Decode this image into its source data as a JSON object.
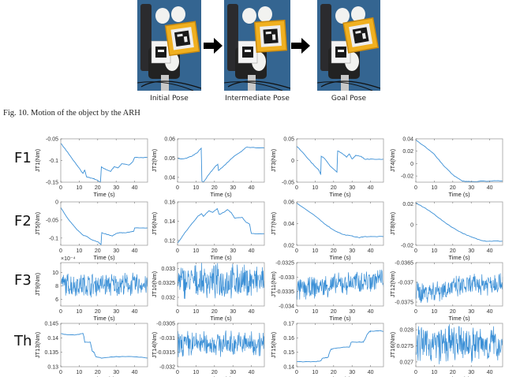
{
  "figure": {
    "caption": "Fig. 10.  Motion of the object by the ARH",
    "poses": [
      {
        "label": "Initial Pose",
        "rotation": -8,
        "cube_x": 38,
        "cube_y": 30
      },
      {
        "label": "Intermediate Pose",
        "rotation": -4,
        "cube_x": 40,
        "cube_y": 27
      },
      {
        "label": "Goal Pose",
        "rotation": -10,
        "cube_x": 36,
        "cube_y": 26
      }
    ],
    "row_labels": [
      "F1",
      "F2",
      "F3",
      "Th"
    ],
    "colors": {
      "line": "#3a8fd6",
      "axis": "#a0a0a0",
      "photo_bg": "#2f5f8c",
      "cube": "#f0b020"
    }
  },
  "chart_data": [
    {
      "type": "line",
      "ylabel": "JT1(Nm)",
      "xlabel": "Time (s)",
      "xlim": [
        0,
        47
      ],
      "ylim": [
        -0.15,
        -0.05
      ],
      "yticks": [
        "-0.05",
        "-0.1",
        "-0.15"
      ],
      "xticks": [
        "0",
        "10",
        "20",
        "30",
        "40"
      ],
      "x": [
        0,
        3,
        6,
        9,
        12,
        13,
        14,
        16,
        18,
        20,
        21.5,
        22,
        24,
        27,
        29,
        31,
        33,
        37,
        39,
        40,
        47
      ],
      "y": [
        -0.06,
        -0.077,
        -0.095,
        -0.112,
        -0.13,
        -0.122,
        -0.138,
        -0.14,
        -0.142,
        -0.146,
        -0.15,
        -0.115,
        -0.12,
        -0.125,
        -0.114,
        -0.117,
        -0.108,
        -0.11,
        -0.103,
        -0.093,
        -0.093
      ]
    },
    {
      "type": "line",
      "ylabel": "JT2(Nm)",
      "xlabel": "Time (s)",
      "xlim": [
        0,
        47
      ],
      "ylim": [
        0.0375,
        0.06
      ],
      "yticks": [
        "0.06",
        "0.05",
        "0.04"
      ],
      "xticks": [
        "0",
        "10",
        "20",
        "30",
        "40"
      ],
      "x": [
        0,
        2,
        5,
        8,
        11,
        12.8,
        13.2,
        14,
        17,
        20,
        21.8,
        22.2,
        26,
        30,
        34,
        37.5,
        40,
        47
      ],
      "y": [
        0.05,
        0.0495,
        0.05,
        0.0512,
        0.053,
        0.0552,
        0.038,
        0.0375,
        0.0415,
        0.0452,
        0.0468,
        0.0435,
        0.0468,
        0.0505,
        0.053,
        0.0558,
        0.0555,
        0.0553
      ]
    },
    {
      "type": "line",
      "ylabel": "JT3(Nm)",
      "xlabel": "Time (s)",
      "xlim": [
        0,
        47
      ],
      "ylim": [
        -0.05,
        0.05
      ],
      "yticks": [
        "0.05",
        "0",
        "-0.05"
      ],
      "xticks": [
        "0",
        "10",
        "20",
        "30",
        "40"
      ],
      "x": [
        0,
        4,
        8,
        12,
        13,
        13.3,
        15,
        18,
        21.8,
        22.2,
        24,
        27,
        28.5,
        30,
        32,
        35,
        37,
        40,
        47
      ],
      "y": [
        0.033,
        0.015,
        -0.005,
        -0.022,
        -0.032,
        0.01,
        0.005,
        -0.012,
        -0.027,
        0.022,
        0.018,
        0.008,
        0.015,
        0.003,
        0.012,
        0.009,
        0.003,
        0.003,
        0.003
      ]
    },
    {
      "type": "line",
      "ylabel": "JT4(Nm)",
      "xlabel": "Time (s)",
      "xlim": [
        0,
        47
      ],
      "ylim": [
        -0.03,
        0.04
      ],
      "yticks": [
        "0.04",
        "0.02",
        "0",
        "-0.02"
      ],
      "xticks": [
        "0",
        "10",
        "20",
        "30",
        "40"
      ],
      "x": [
        0,
        5,
        10,
        15,
        20,
        25,
        27,
        30,
        40,
        47
      ],
      "y": [
        0.038,
        0.027,
        0.015,
        -0.003,
        -0.018,
        -0.028,
        -0.029,
        -0.029,
        -0.028,
        -0.028
      ]
    },
    {
      "type": "line",
      "ylabel": "JT5(Nm)",
      "xlabel": "Time (s)",
      "xlim": [
        0,
        47
      ],
      "ylim": [
        -0.12,
        0
      ],
      "yticks": [
        "0",
        "-0.05",
        "-0.1"
      ],
      "xticks": [
        "0",
        "10",
        "20",
        "30",
        "40"
      ],
      "x": [
        0,
        3,
        6,
        9,
        12,
        14,
        17,
        20,
        21.8,
        22.2,
        25,
        28,
        30,
        32,
        35,
        38,
        39.5,
        40,
        47
      ],
      "y": [
        -0.015,
        -0.04,
        -0.06,
        -0.078,
        -0.092,
        -0.095,
        -0.105,
        -0.11,
        -0.118,
        -0.085,
        -0.09,
        -0.094,
        -0.088,
        -0.085,
        -0.086,
        -0.082,
        -0.082,
        -0.072,
        -0.072
      ]
    },
    {
      "type": "line",
      "ylabel": "JT6(Nm)",
      "xlabel": "Time (s)",
      "xlim": [
        0,
        47
      ],
      "ylim": [
        0.115,
        0.16
      ],
      "yticks": [
        "0.16",
        "0.14",
        "0.12"
      ],
      "xticks": [
        "0",
        "10",
        "20",
        "30",
        "40"
      ],
      "x": [
        0,
        4,
        8,
        11,
        13,
        14,
        17,
        19,
        21.5,
        22.5,
        25,
        27,
        29,
        31,
        35,
        37,
        39,
        40,
        47
      ],
      "y": [
        0.117,
        0.128,
        0.138,
        0.145,
        0.148,
        0.145,
        0.151,
        0.149,
        0.153,
        0.147,
        0.149,
        0.152,
        0.149,
        0.143,
        0.144,
        0.139,
        0.137,
        0.127,
        0.127
      ]
    },
    {
      "type": "line",
      "ylabel": "JT7(Nm)",
      "xlabel": "Time (s)",
      "xlim": [
        0,
        47
      ],
      "ylim": [
        0.02,
        0.06
      ],
      "yticks": [
        "0.06",
        "0.04",
        "0.02"
      ],
      "xticks": [
        "0",
        "10",
        "20",
        "30",
        "40"
      ],
      "x": [
        0,
        5,
        10,
        15,
        20,
        25,
        30,
        34,
        36,
        40,
        47
      ],
      "y": [
        0.059,
        0.053,
        0.047,
        0.04,
        0.034,
        0.03,
        0.0285,
        0.027,
        0.028,
        0.028,
        0.028
      ]
    },
    {
      "type": "line",
      "ylabel": "JT8(Nm)",
      "xlabel": "Time (s)",
      "xlim": [
        0,
        47
      ],
      "ylim": [
        -0.02,
        0.022
      ],
      "yticks": [
        "0.02",
        "0",
        "-0.02"
      ],
      "xticks": [
        "0",
        "10",
        "20",
        "30",
        "40"
      ],
      "x": [
        0,
        5,
        10,
        15,
        20,
        25,
        30,
        35,
        38,
        42,
        47
      ],
      "y": [
        0.021,
        0.016,
        0.01,
        0.003,
        -0.003,
        -0.008,
        -0.012,
        -0.015,
        -0.016,
        -0.016,
        -0.016
      ]
    },
    {
      "type": "line",
      "noise": true,
      "exponent_label": "×10⁻⁴",
      "ylabel": "JT9(Nm)",
      "xlabel": "Time (s)",
      "xlim": [
        0,
        47
      ],
      "ylim": [
        5,
        11.5
      ],
      "yticks": [
        "10",
        "8",
        "6"
      ],
      "xticks": [
        "0",
        "10",
        "20",
        "30",
        "40"
      ],
      "mean": 8.2,
      "amplitude": 1.8,
      "note": "noisy signal, values in units of 1e-4 Nm"
    },
    {
      "type": "line",
      "noise": true,
      "ylabel": "JT10(Nm)",
      "xlabel": "Time (s)",
      "xlim": [
        0,
        47
      ],
      "ylim": [
        0.0317,
        0.0332
      ],
      "yticks": [
        "0.033",
        "0.0325",
        "0.032"
      ],
      "xticks": [
        "0",
        "10",
        "20",
        "30",
        "40"
      ],
      "mean": 0.03255,
      "amplitude": 0.0006
    },
    {
      "type": "line",
      "noise": true,
      "ylabel": "JT11(Nm)",
      "xlabel": "Time (s)",
      "xlim": [
        0,
        47
      ],
      "ylim": [
        -0.034,
        -0.0325
      ],
      "yticks": [
        "-0.0325",
        "-0.033",
        "-0.0335",
        "-0.034"
      ],
      "xticks": [
        "0",
        "10",
        "20",
        "30",
        "40"
      ],
      "mean": -0.03325,
      "amplitude": 0.0004,
      "trend": 0.0002
    },
    {
      "type": "line",
      "noise": true,
      "ylabel": "JT12(Nm)",
      "xlabel": "Time (s)",
      "xlim": [
        0,
        47
      ],
      "ylim": [
        -0.0376,
        -0.0365
      ],
      "yticks": [
        "-0.0365",
        "-0.037",
        "-0.0375"
      ],
      "xticks": [
        "0",
        "10",
        "20",
        "30",
        "40"
      ],
      "mean": -0.03712,
      "amplitude": 0.0003,
      "trend": 0.00015
    },
    {
      "type": "line",
      "ylabel": "JT13(Nm)",
      "xlabel": "Time (s)",
      "xlim": [
        0,
        47
      ],
      "ylim": [
        0.13,
        0.145
      ],
      "yticks": [
        "0.145",
        "0.14",
        "0.135",
        "0.13"
      ],
      "xticks": [
        "0",
        "10",
        "20",
        "30",
        "40"
      ],
      "x": [
        0,
        4,
        8,
        12,
        12.5,
        13,
        16,
        16.5,
        17,
        18,
        19,
        22,
        30,
        40,
        47
      ],
      "y": [
        0.1415,
        0.141,
        0.141,
        0.1415,
        0.1405,
        0.1385,
        0.1385,
        0.137,
        0.1355,
        0.135,
        0.1335,
        0.133,
        0.1335,
        0.1335,
        0.133
      ]
    },
    {
      "type": "line",
      "noise": true,
      "ylabel": "JT14(Nm)",
      "xlabel": "Time (s)",
      "xlim": [
        0,
        47
      ],
      "ylim": [
        -0.032,
        -0.0305
      ],
      "yticks": [
        "-0.0305",
        "-0.031",
        "-0.0315",
        "-0.032"
      ],
      "xticks": [
        "0",
        "10",
        "20",
        "30",
        "40"
      ],
      "mean": -0.0312,
      "amplitude": 0.00045
    },
    {
      "type": "line",
      "ylabel": "JT15(Nm)",
      "xlabel": "Time (s)",
      "xlim": [
        0,
        47
      ],
      "ylim": [
        0.14,
        0.17
      ],
      "yticks": [
        "0.17",
        "0.16",
        "0.15",
        "0.14"
      ],
      "xticks": [
        "0",
        "10",
        "20",
        "30",
        "40"
      ],
      "x": [
        0,
        5,
        10,
        13,
        14,
        17,
        17.8,
        18.5,
        20,
        25,
        28.5,
        29,
        29.5,
        33,
        36,
        37,
        38,
        39.5,
        40,
        45,
        47
      ],
      "y": [
        0.1435,
        0.1435,
        0.1435,
        0.144,
        0.146,
        0.1465,
        0.15,
        0.152,
        0.1525,
        0.1535,
        0.1535,
        0.155,
        0.157,
        0.157,
        0.157,
        0.159,
        0.162,
        0.1645,
        0.1645,
        0.165,
        0.1645
      ]
    },
    {
      "type": "line",
      "noise": true,
      "ylabel": "JT16(Nm)",
      "xlabel": "Time (s)",
      "xlim": [
        0,
        47
      ],
      "ylim": [
        0.02685,
        0.0282
      ],
      "yticks": [
        "0.028",
        "0.0275",
        "0.027"
      ],
      "xticks": [
        "0",
        "10",
        "20",
        "30",
        "40"
      ],
      "mean": 0.02755,
      "amplitude": 0.0006
    }
  ]
}
